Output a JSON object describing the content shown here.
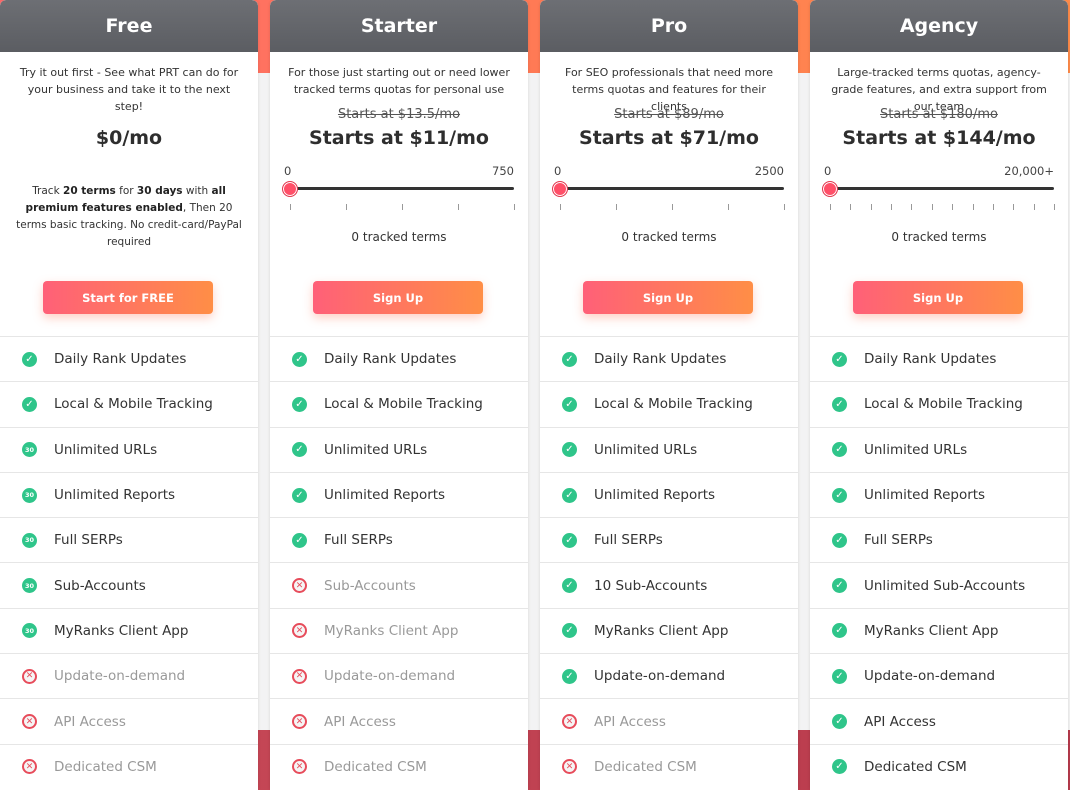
{
  "accent_colors": {
    "check": "#2fc58a",
    "cross": "#e74c5b",
    "cta_from": "#ff6078",
    "cta_to": "#ff8e46",
    "header": "#626469"
  },
  "plans": [
    {
      "name": "Free",
      "description": "Try it out first - See what PRT can do for your business and take it to the next step!",
      "old_price": "",
      "price": "$0/mo",
      "note_html": "Track <b>20 terms</b> for <b>30 days</b> with <b>all premium features enabled</b>, Then 20 terms basic tracking. No credit-card/PayPal required",
      "slider": null,
      "cta": "Start for FREE",
      "features": [
        {
          "label": "Daily Rank Updates",
          "state": "check"
        },
        {
          "label": "Local & Mobile Tracking",
          "state": "check"
        },
        {
          "label": "Unlimited URLs",
          "state": "trial"
        },
        {
          "label": "Unlimited Reports",
          "state": "trial"
        },
        {
          "label": "Full SERPs",
          "state": "trial"
        },
        {
          "label": "Sub-Accounts",
          "state": "trial"
        },
        {
          "label": "MyRanks Client App",
          "state": "trial"
        },
        {
          "label": "Update-on-demand",
          "state": "cross"
        },
        {
          "label": "API Access",
          "state": "cross"
        },
        {
          "label": "Dedicated CSM",
          "state": "cross"
        }
      ]
    },
    {
      "name": "Starter",
      "description": "For those just starting out or need lower tracked terms quotas for personal use",
      "old_price": "Starts at $13.5/mo",
      "price": "Starts at $11/mo",
      "note_html": "",
      "slider": {
        "min": "0",
        "max": "750",
        "value_fraction": 0,
        "ticks": 5,
        "tracked": "0 tracked terms"
      },
      "cta": "Sign Up",
      "features": [
        {
          "label": "Daily Rank Updates",
          "state": "check"
        },
        {
          "label": "Local & Mobile Tracking",
          "state": "check"
        },
        {
          "label": "Unlimited URLs",
          "state": "check"
        },
        {
          "label": "Unlimited Reports",
          "state": "check"
        },
        {
          "label": "Full SERPs",
          "state": "check"
        },
        {
          "label": "Sub-Accounts",
          "state": "cross"
        },
        {
          "label": "MyRanks Client App",
          "state": "cross"
        },
        {
          "label": "Update-on-demand",
          "state": "cross"
        },
        {
          "label": "API Access",
          "state": "cross"
        },
        {
          "label": "Dedicated CSM",
          "state": "cross"
        }
      ]
    },
    {
      "name": "Pro",
      "description": "For SEO professionals that need more terms quotas and features for their clients",
      "old_price": "Starts at $89/mo",
      "price": "Starts at $71/mo",
      "note_html": "",
      "slider": {
        "min": "0",
        "max": "2500",
        "value_fraction": 0,
        "ticks": 5,
        "tracked": "0 tracked terms"
      },
      "cta": "Sign Up",
      "features": [
        {
          "label": "Daily Rank Updates",
          "state": "check"
        },
        {
          "label": "Local & Mobile Tracking",
          "state": "check"
        },
        {
          "label": "Unlimited URLs",
          "state": "check"
        },
        {
          "label": "Unlimited Reports",
          "state": "check"
        },
        {
          "label": "Full SERPs",
          "state": "check"
        },
        {
          "label": "10 Sub-Accounts",
          "state": "check"
        },
        {
          "label": "MyRanks Client App",
          "state": "check"
        },
        {
          "label": "Update-on-demand",
          "state": "check"
        },
        {
          "label": "API Access",
          "state": "cross"
        },
        {
          "label": "Dedicated CSM",
          "state": "cross"
        }
      ]
    },
    {
      "name": "Agency",
      "description": "Large-tracked terms quotas, agency-grade features, and extra support from our team",
      "old_price": "Starts at $180/mo",
      "price": "Starts at $144/mo",
      "note_html": "",
      "slider": {
        "min": "0",
        "max": "20,000+",
        "value_fraction": 0,
        "ticks": 12,
        "tracked": "0 tracked terms"
      },
      "cta": "Sign Up",
      "features": [
        {
          "label": "Daily Rank Updates",
          "state": "check"
        },
        {
          "label": "Local & Mobile Tracking",
          "state": "check"
        },
        {
          "label": "Unlimited URLs",
          "state": "check"
        },
        {
          "label": "Unlimited Reports",
          "state": "check"
        },
        {
          "label": "Full SERPs",
          "state": "check"
        },
        {
          "label": "Unlimited Sub-Accounts",
          "state": "check"
        },
        {
          "label": "MyRanks Client App",
          "state": "check"
        },
        {
          "label": "Update-on-demand",
          "state": "check"
        },
        {
          "label": "API Access",
          "state": "check"
        },
        {
          "label": "Dedicated CSM",
          "state": "check"
        }
      ]
    }
  ],
  "icons": {
    "check": "check-circle-icon",
    "cross": "x-circle-icon",
    "trial": "30-day-badge-icon",
    "trial_text": "30"
  }
}
